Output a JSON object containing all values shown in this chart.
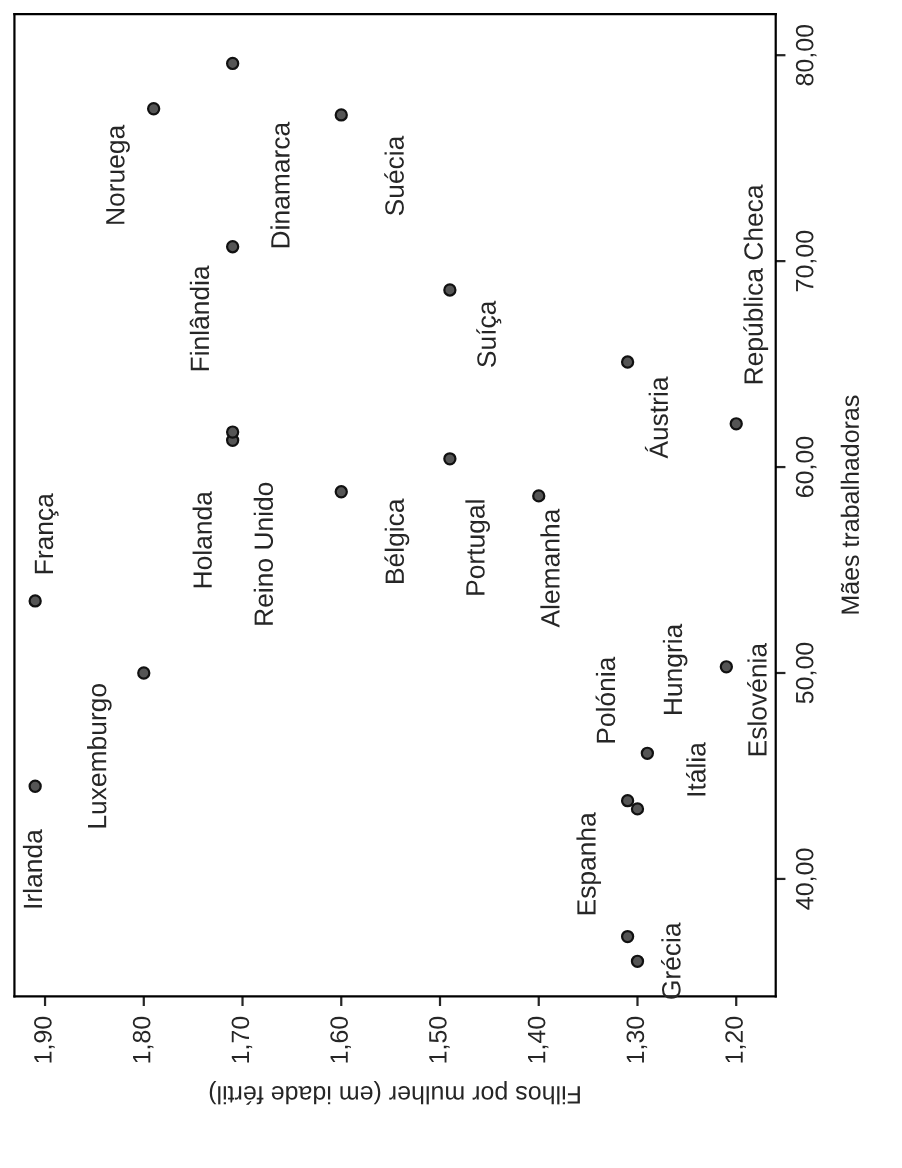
{
  "chart_data": {
    "type": "scatter",
    "xlabel": "Filhos por mulher (em idade fértil)",
    "ylabel": "Mães trabalhadoras",
    "x": [
      1.91,
      1.91,
      1.8,
      1.71,
      1.71,
      1.6,
      1.49,
      1.49,
      1.6,
      1.79,
      1.71,
      1.71,
      1.4,
      1.31,
      1.2,
      1.21,
      1.29,
      1.31,
      1.3,
      1.31,
      1.3
    ],
    "values": [
      44.5,
      53.5,
      50.0,
      61.3,
      61.7,
      58.8,
      60.4,
      68.6,
      77.1,
      77.4,
      79.6,
      70.7,
      58.6,
      65.1,
      62.1,
      50.3,
      46.1,
      43.8,
      43.4,
      37.2,
      36.0
    ],
    "color": "#555555",
    "marker": "circle",
    "grid": false,
    "xlim": [
      1.931,
      1.16
    ],
    "ylim": [
      34.3,
      82.0
    ],
    "yticks": [
      {
        "value": 40,
        "label": "40,00"
      },
      {
        "value": 50,
        "label": "50,00"
      },
      {
        "value": 60,
        "label": "60,00"
      },
      {
        "value": 70,
        "label": "70,00"
      },
      {
        "value": 80,
        "label": "80,00"
      }
    ],
    "xticks": [
      {
        "value": 1.9,
        "label": "1,90"
      },
      {
        "value": 1.8,
        "label": "1,80"
      },
      {
        "value": 1.7,
        "label": "1,70"
      },
      {
        "value": 1.6,
        "label": "1,60"
      },
      {
        "value": 1.5,
        "label": "1,50"
      },
      {
        "value": 1.4,
        "label": "1,40"
      },
      {
        "value": 1.3,
        "label": "1,30"
      },
      {
        "value": 1.2,
        "label": "1,20"
      }
    ],
    "annotations": [
      {
        "text": "Irlanda",
        "x": 1.91,
        "y": 44.5
      },
      {
        "text": "França",
        "x": 1.91,
        "y": 53.5
      },
      {
        "text": "Luxemburgo",
        "x": 1.8,
        "y": 50.0
      },
      {
        "text": "Holanda",
        "x": 1.71,
        "y": 61.3
      },
      {
        "text": "Reino Unido",
        "x": 1.71,
        "y": 61.7
      },
      {
        "text": "Bélgica",
        "x": 1.6,
        "y": 58.8
      },
      {
        "text": "Portugal",
        "x": 1.49,
        "y": 60.4
      },
      {
        "text": "Suíça",
        "x": 1.49,
        "y": 68.6
      },
      {
        "text": "Suécia",
        "x": 1.6,
        "y": 77.1
      },
      {
        "text": "Noruega",
        "x": 1.79,
        "y": 77.4
      },
      {
        "text": "Dinamarca",
        "x": 1.71,
        "y": 79.6
      },
      {
        "text": "Finlândia",
        "x": 1.71,
        "y": 70.7
      },
      {
        "text": "Alemanha",
        "x": 1.4,
        "y": 58.6
      },
      {
        "text": "Áustria",
        "x": 1.31,
        "y": 65.1
      },
      {
        "text": "República Checa",
        "x": 1.2,
        "y": 62.1
      },
      {
        "text": "Eslovénia",
        "x": 1.21,
        "y": 50.3
      },
      {
        "text": "Hungria",
        "x": 1.29,
        "y": 46.1
      },
      {
        "text": "Polónia",
        "x": 1.31,
        "y": 43.8
      },
      {
        "text": "Itália",
        "x": 1.3,
        "y": 43.4
      },
      {
        "text": "Espanha",
        "x": 1.31,
        "y": 37.2
      },
      {
        "text": "Grécia",
        "x": 1.3,
        "y": 36.0
      }
    ]
  }
}
